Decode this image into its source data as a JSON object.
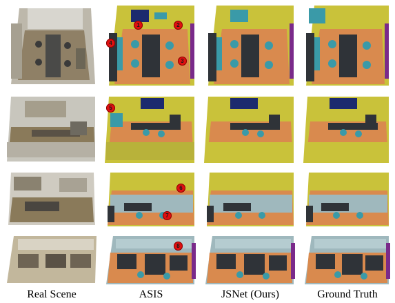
{
  "columns": [
    {
      "id": "real",
      "label": "Real Scene"
    },
    {
      "id": "asis",
      "label": "ASIS"
    },
    {
      "id": "jsnet",
      "label": "JSNet (Ours)"
    },
    {
      "id": "gt",
      "label": "Ground Truth"
    }
  ],
  "markers": [
    "1",
    "2",
    "3",
    "4",
    "5",
    "6",
    "7",
    "8"
  ],
  "colors": {
    "floor": "#d98a4e",
    "wall": "#c9c23a",
    "table": "#2f3338",
    "chair": "#3a9aa8",
    "board": "#1c2a6e",
    "clutter": "#9fb8bd",
    "bookcase": "#7a2a8a",
    "real_wall": "#c8c6bd",
    "real_floor": "#8a7a5a"
  }
}
